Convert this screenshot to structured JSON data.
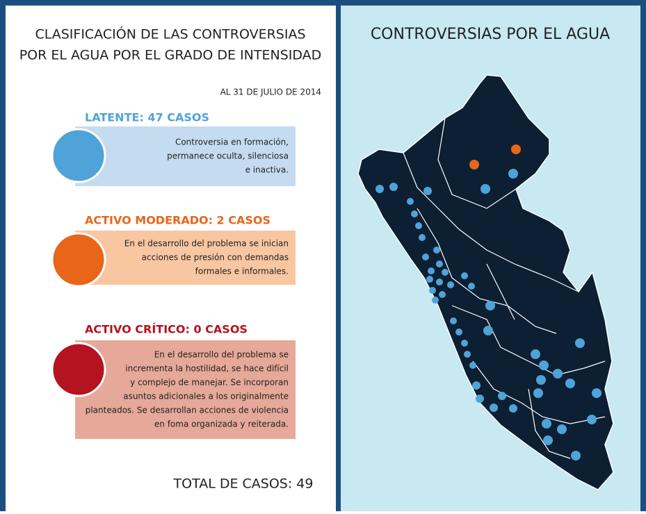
{
  "left": {
    "title": [
      "CLASIFICACIÓN DE LAS CONTROVERSIAS",
      "POR EL AGUA POR EL GRADO DE INTENSIDAD"
    ],
    "date": "AL 31 DE JULIO DE 2014",
    "levels": [
      {
        "heading": "LATENTE: 47 CASOS",
        "color": "#4fa3d8",
        "box": "#c5dcf0",
        "lines": [
          "Controversia en formación,",
          "permanece oculta, silenciosa",
          "e inactiva."
        ]
      },
      {
        "heading": "ACTIVO MODERADO: 2 CASOS",
        "color": "#e8661a",
        "box": "#f9c6a2",
        "lines": [
          "En el desarrollo del problema se inician",
          "acciones de presión con demandas",
          "formales e informales."
        ]
      },
      {
        "heading": "ACTIVO CRÍTICO: 0 CASOS",
        "color": "#b51320",
        "box": "#e6a898",
        "lines": [
          "En el desarrollo del problema se",
          "incrementa la hostilidad, se hace difícil",
          "y complejo de manejar. Se incorporan",
          "asuntos adicionales a los originalmente",
          "planteados. Se desarrollan acciones de violencia",
          "en foma organizada y reiterada."
        ]
      }
    ],
    "total": "TOTAL DE CASOS: 49"
  },
  "right": {
    "title": "CONTROVERSIAS POR EL AGUA"
  }
}
